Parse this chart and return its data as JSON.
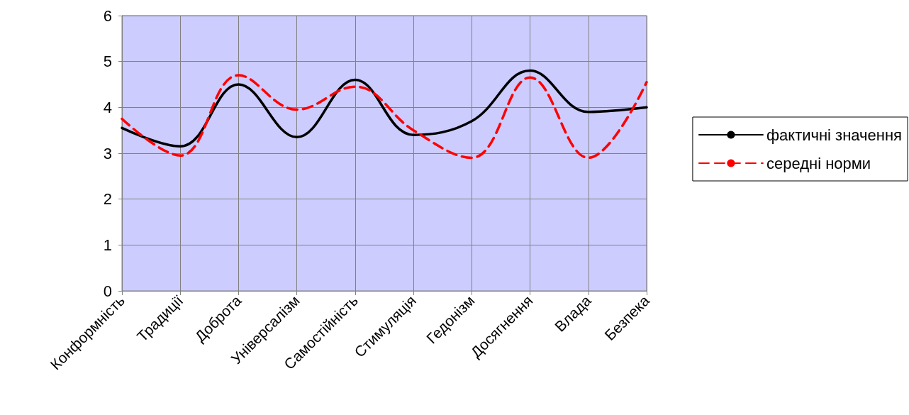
{
  "chart_data": {
    "type": "line",
    "categories": [
      "Конформність",
      "Традиції",
      "Доброта",
      "Універсалізм",
      "Самостійність",
      "Стимуляція",
      "Гедонізм",
      "Досягнення",
      "Влада",
      "Безпека"
    ],
    "series": [
      {
        "name": "фактичні значення",
        "color": "#000000",
        "line_style": "solid",
        "values": [
          3.55,
          3.15,
          4.5,
          3.35,
          4.6,
          3.4,
          3.7,
          4.8,
          3.9,
          4.0
        ]
      },
      {
        "name": "середні норми",
        "color": "#ff0000",
        "line_style": "dashed",
        "values": [
          3.75,
          2.95,
          4.7,
          3.95,
          4.45,
          3.5,
          2.9,
          4.65,
          2.9,
          4.55
        ]
      }
    ],
    "ylim": [
      0,
      6
    ],
    "yticks": [
      0,
      1,
      2,
      3,
      4,
      5,
      6
    ],
    "grid": true,
    "legend": "right",
    "marker": "none"
  }
}
